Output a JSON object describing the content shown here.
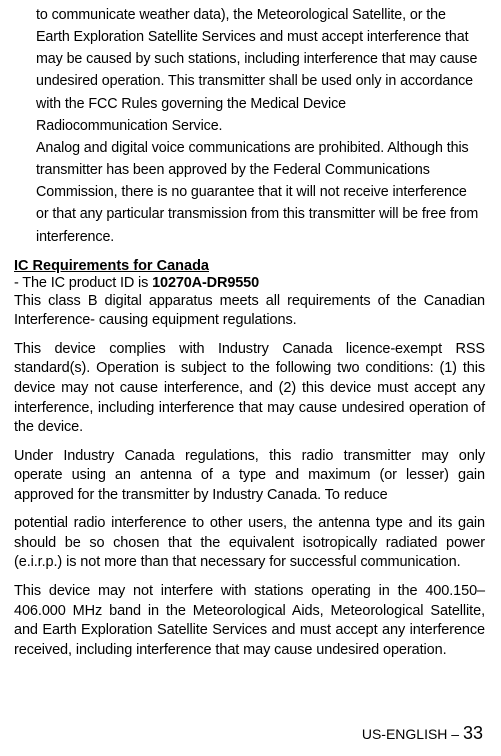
{
  "topBlock": {
    "p1": "to communicate weather data), the Meteorological Satellite, or the Earth Exploration Satellite Services and must accept interference that may be caused by such stations, including interference that may cause undesired operation. This transmitter shall be used only in accordance with the FCC Rules governing the Medical Device Radiocommunication Service.",
    "p2": "Analog and digital voice communications are prohibited. Although this transmitter has been approved by the Federal Communications Commission, there is no guarantee that it will not receive interference or that any particular transmission from this transmitter will be free from interference."
  },
  "heading": "IC Requirements for Canada",
  "subline_prefix": "- The IC product ID is ",
  "subline_bold": "10270A-DR9550",
  "paras": {
    "p1": "This class B digital apparatus meets all requirements of the Canadian Interference- causing equipment regulations.",
    "p2": "This device complies with Industry Canada licence-exempt RSS standard(s). Operation is subject to the following two conditions: (1) this device may not cause interference, and (2) this device must accept any interference, including interference that may cause undesired operation of the device.",
    "p3": "Under Industry Canada regulations, this radio transmitter may only operate using an antenna of a type and maximum (or lesser) gain approved for the transmitter by Industry Canada. To reduce",
    "p4": "potential radio interference to other users, the antenna type and its gain should be so chosen that the equivalent isotropically radiated power (e.i.r.p.) is not more than that necessary for successful communication.",
    "p5": "This device may not interfere with stations operating in the 400.150–406.000 MHz band in the Meteorological Aids, Meteorological Satellite, and Earth Exploration Satellite Services and must accept any interference received, including interference that may cause undesired operation."
  },
  "footer": {
    "label": "US-ENGLISH – ",
    "page": "33"
  }
}
